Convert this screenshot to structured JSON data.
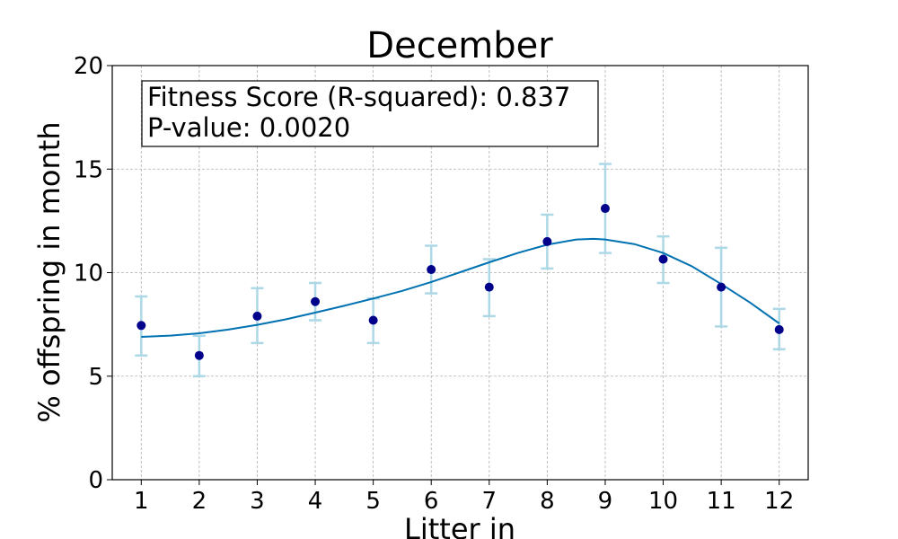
{
  "chart_data": {
    "type": "scatter",
    "title": "December",
    "xlabel": "Litter in",
    "ylabel": "% offspring in month",
    "x": [
      1,
      2,
      3,
      4,
      5,
      6,
      7,
      8,
      9,
      10,
      11,
      12
    ],
    "xticks": [
      "1",
      "2",
      "3",
      "4",
      "5",
      "6",
      "7",
      "8",
      "9",
      "10",
      "11",
      "12"
    ],
    "xlim": [
      0.5,
      12.5
    ],
    "ylim": [
      0,
      20
    ],
    "yticks": [
      "0",
      "5",
      "10",
      "15",
      "20"
    ],
    "grid": true,
    "series": [
      {
        "kind": "points",
        "values": [
          7.45,
          6.0,
          7.9,
          8.6,
          7.7,
          10.15,
          9.3,
          11.5,
          13.1,
          10.65,
          9.3,
          7.25
        ],
        "error_low": [
          6.0,
          5.0,
          6.6,
          7.7,
          6.6,
          9.0,
          7.9,
          10.2,
          10.95,
          9.5,
          7.4,
          6.3
        ],
        "error_high": [
          8.85,
          6.95,
          9.25,
          9.5,
          8.75,
          11.3,
          10.65,
          12.8,
          15.25,
          11.75,
          11.2,
          8.25
        ],
        "color": "#00008b",
        "error_color": "#add8e6"
      },
      {
        "kind": "fit-line",
        "x": [
          1,
          1.5,
          2,
          2.5,
          3,
          3.5,
          4,
          4.5,
          5,
          5.5,
          6,
          6.5,
          7,
          7.5,
          8,
          8.5,
          8.8,
          9,
          9.5,
          10,
          10.5,
          11,
          11.5,
          12
        ],
        "values": [
          6.9,
          6.96,
          7.07,
          7.25,
          7.48,
          7.75,
          8.07,
          8.4,
          8.75,
          9.12,
          9.55,
          10.02,
          10.5,
          10.96,
          11.35,
          11.6,
          11.63,
          11.6,
          11.38,
          10.95,
          10.3,
          9.45,
          8.55,
          7.55
        ],
        "color": "#0072b2"
      }
    ],
    "annotation": {
      "line1": "Fitness Score (R-squared): 0.837",
      "line2": "P-value: 0.0020"
    }
  }
}
